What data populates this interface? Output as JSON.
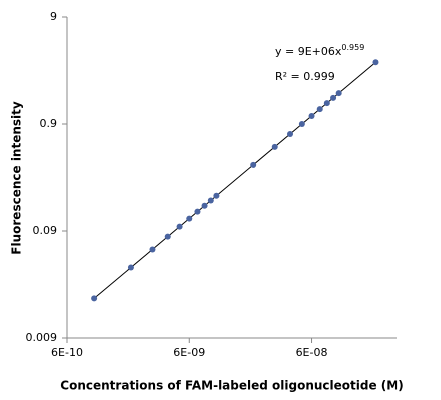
{
  "chart_data": {
    "type": "scatter",
    "x_label": "Concentrations of FAM-labeled oligonucleotide (M)",
    "y_label": "Fluorescence intensity",
    "log_x": true,
    "log_y": true,
    "xlim": [
      6e-10,
      3e-07
    ],
    "xticks": [
      {
        "value": 6e-10,
        "label": "6E-10"
      },
      {
        "value": 6e-09,
        "label": "6E-09"
      },
      {
        "value": 6e-08,
        "label": "6E-08"
      }
    ],
    "ylim": [
      0.009,
      9
    ],
    "yticks": [
      0.009,
      0.09,
      0.9,
      9
    ],
    "series": [
      {
        "color": "#4a64a0",
        "x": [
          1e-09,
          2e-09,
          3e-09,
          4e-09,
          5e-09,
          6e-09,
          7e-09,
          8e-09,
          9e-09,
          1e-08,
          2e-08,
          3e-08,
          4e-08,
          5e-08,
          6e-08,
          7e-08,
          8e-08,
          9e-08,
          1e-07,
          2e-07
        ],
        "values": [
          0.0211,
          0.041,
          0.0605,
          0.0798,
          0.0988,
          0.1176,
          0.1364,
          0.155,
          0.1735,
          0.192,
          0.373,
          0.55,
          0.726,
          0.899,
          1.07,
          1.241,
          1.411,
          1.579,
          1.747,
          3.4
        ]
      }
    ],
    "trendline": {
      "x": [
        1e-09,
        2e-07
      ],
      "values": [
        0.0211,
        3.4
      ]
    },
    "equation": "y = 9E+06x",
    "equation_exponent": "0.959",
    "r_squared": "R² = 0.999"
  }
}
